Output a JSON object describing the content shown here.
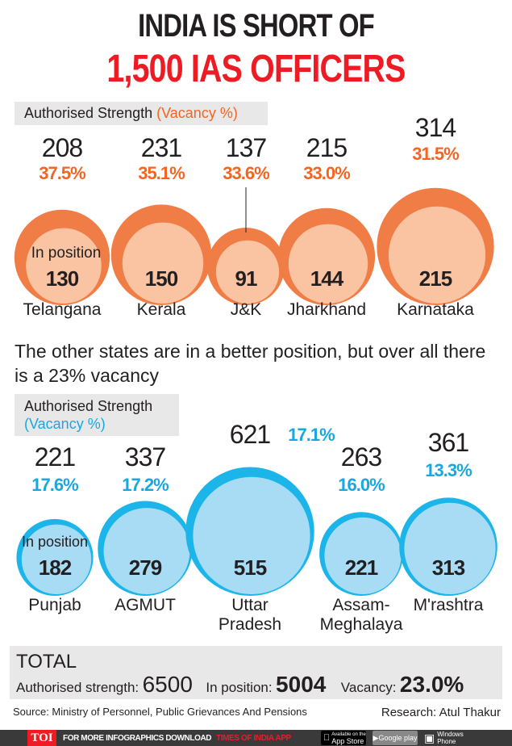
{
  "title_line1": "INDIA IS SHORT OF",
  "title_line2": "1,500 IAS OFFICERS",
  "colors": {
    "title_red": "#ed1c24",
    "orange_outer": "#f07d45",
    "orange_inner": "#fac4a3",
    "orange_text": "#f26522",
    "blue_outer": "#1cb5ea",
    "blue_inner": "#a8dcf4",
    "blue_text": "#1aa7e0"
  },
  "legend_top": {
    "label": "Authorised Strength",
    "pct": "(Vacancy %)"
  },
  "legend_bottom": {
    "label": "Authorised Strength",
    "pct": "(Vacancy %)"
  },
  "in_position_label": "In position",
  "middle_text": "The other states are in a better position, but over all there is a 23% vacancy",
  "chart_data": [
    {
      "type": "bubble",
      "series": [
        "Authorised Strength",
        "Vacancy %",
        "In position"
      ],
      "items": [
        {
          "state": "Telangana",
          "authorised": "208",
          "vacancy": "37.5%",
          "in_position": "130"
        },
        {
          "state": "Kerala",
          "authorised": "231",
          "vacancy": "35.1%",
          "in_position": "150"
        },
        {
          "state": "J&K",
          "authorised": "137",
          "vacancy": "33.6%",
          "in_position": "91"
        },
        {
          "state": "Jharkhand",
          "authorised": "215",
          "vacancy": "33.0%",
          "in_position": "144"
        },
        {
          "state": "Karnataka",
          "authorised": "314",
          "vacancy": "31.5%",
          "in_position": "215"
        }
      ]
    },
    {
      "type": "bubble",
      "series": [
        "Authorised Strength",
        "Vacancy %",
        "In position"
      ],
      "items": [
        {
          "state": "Punjab",
          "authorised": "221",
          "vacancy": "17.6%",
          "in_position": "182"
        },
        {
          "state": "AGMUT",
          "authorised": "337",
          "vacancy": "17.2%",
          "in_position": "279"
        },
        {
          "state": "Uttar Pradesh",
          "state_lines": [
            "Uttar",
            "Pradesh"
          ],
          "authorised": "621",
          "vacancy": "17.1%",
          "in_position": "515"
        },
        {
          "state": "Assam-Meghalaya",
          "state_lines": [
            "Assam-",
            "Meghalaya"
          ],
          "authorised": "263",
          "vacancy": "16.0%",
          "in_position": "221"
        },
        {
          "state": "M'rashtra",
          "authorised": "361",
          "vacancy": "13.3%",
          "in_position": "313"
        }
      ]
    }
  ],
  "total": {
    "heading": "TOTAL",
    "authorised_label": "Authorised strength:",
    "authorised_value": "6500",
    "in_position_label": "In position:",
    "in_position_value": "5004",
    "vacancy_label": "Vacancy:",
    "vacancy_value": "23.0%"
  },
  "source": "Source: Ministry of Personnel, Public Grievances And Pensions",
  "research": "Research: Atul Thakur",
  "footer": {
    "logo": "TOI",
    "text": "FOR MORE  INFOGRAPHICS DOWNLOAD",
    "highlight": "TIMES OF INDIA  APP",
    "app_store": "App Store",
    "app_store_small": "Available on the",
    "google_play": "Google play",
    "windows": "Windows Phone"
  }
}
